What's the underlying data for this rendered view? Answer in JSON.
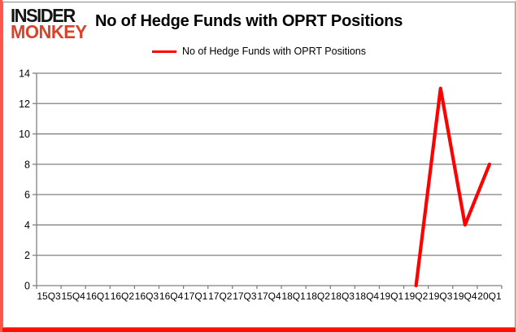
{
  "logo": {
    "line1": "INSIDER",
    "line2": "MONKEY",
    "color": "#d8432c"
  },
  "header": {
    "title": "No of Hedge Funds with OPRT Positions"
  },
  "legend": {
    "label": "No of Hedge Funds with OPRT Positions",
    "color": "#ff0000"
  },
  "chart_data": {
    "type": "line",
    "title": "No of Hedge Funds with OPRT Positions",
    "categories": [
      "15Q3",
      "15Q4",
      "16Q1",
      "16Q2",
      "16Q3",
      "16Q4",
      "17Q1",
      "17Q2",
      "17Q3",
      "17Q4",
      "18Q1",
      "18Q2",
      "18Q3",
      "18Q4",
      "19Q1",
      "19Q2",
      "19Q3",
      "19Q4",
      "20Q1"
    ],
    "series": [
      {
        "name": "No of Hedge Funds with OPRT Positions",
        "color": "#ff0000",
        "values": [
          null,
          null,
          null,
          null,
          null,
          null,
          null,
          null,
          null,
          null,
          null,
          null,
          null,
          null,
          null,
          0,
          13,
          4,
          8
        ]
      }
    ],
    "ylim": [
      0,
      14
    ],
    "yticks": [
      0,
      2,
      4,
      6,
      8,
      10,
      12,
      14
    ],
    "grid": "horizontal",
    "legend_position": "top",
    "colors": {
      "gridline": "#808080",
      "axis": "#808080",
      "text": "#000000",
      "background": "#ffffff"
    }
  }
}
